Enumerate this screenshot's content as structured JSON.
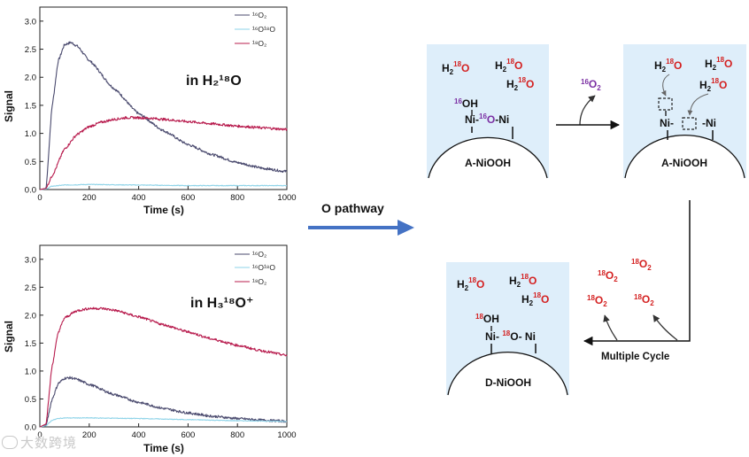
{
  "chart_data": [
    {
      "type": "line",
      "title": "",
      "annotation": "in H₂¹⁸O",
      "xlabel": "Time (s)",
      "ylabel": "Signal",
      "xlim": [
        0,
        1000
      ],
      "ylim": [
        0,
        3.25
      ],
      "xticks": [
        "0",
        "200",
        "400",
        "600",
        "800",
        "1000"
      ],
      "yticks": [
        "0.0",
        "0.5",
        "1.0",
        "1.5",
        "2.0",
        "2.5",
        "3.0"
      ],
      "legend_position": "top-right",
      "series": [
        {
          "name": "¹⁶O₂",
          "color": "#4a4a6e",
          "x": [
            0,
            25,
            50,
            75,
            100,
            125,
            150,
            200,
            300,
            400,
            500,
            600,
            700,
            800,
            900,
            1000
          ],
          "y": [
            0.0,
            0.02,
            1.5,
            2.3,
            2.58,
            2.62,
            2.56,
            2.3,
            1.8,
            1.35,
            1.05,
            0.8,
            0.62,
            0.48,
            0.38,
            0.32
          ]
        },
        {
          "name": "¹⁶O¹⁸O",
          "color": "#8ed3e8",
          "x": [
            0,
            25,
            50,
            100,
            200,
            400,
            600,
            800,
            1000
          ],
          "y": [
            0.0,
            0.01,
            0.06,
            0.08,
            0.09,
            0.08,
            0.07,
            0.07,
            0.07
          ]
        },
        {
          "name": "¹⁸O₂",
          "color": "#b81c4e",
          "x": [
            0,
            25,
            50,
            100,
            150,
            200,
            250,
            300,
            350,
            400,
            450,
            500,
            600,
            700,
            800,
            900,
            1000
          ],
          "y": [
            0.0,
            0.02,
            0.25,
            0.72,
            0.98,
            1.12,
            1.2,
            1.25,
            1.28,
            1.28,
            1.27,
            1.25,
            1.21,
            1.17,
            1.13,
            1.1,
            1.07
          ]
        }
      ]
    },
    {
      "type": "line",
      "title": "",
      "annotation": "in H₃¹⁸O⁺",
      "xlabel": "Time (s)",
      "ylabel": "Signal",
      "xlim": [
        0,
        1000
      ],
      "ylim": [
        0,
        3.25
      ],
      "xticks": [
        "0",
        "200",
        "400",
        "600",
        "800",
        "1000"
      ],
      "yticks": [
        "0.0",
        "0.5",
        "1.0",
        "1.5",
        "2.0",
        "2.5",
        "3.0"
      ],
      "legend_position": "top-right",
      "series": [
        {
          "name": "¹⁶O₂",
          "color": "#4a4a6e",
          "x": [
            0,
            25,
            50,
            75,
            100,
            125,
            150,
            200,
            300,
            400,
            500,
            600,
            700,
            800,
            900,
            1000
          ],
          "y": [
            0.0,
            0.03,
            0.5,
            0.78,
            0.87,
            0.88,
            0.85,
            0.76,
            0.58,
            0.44,
            0.33,
            0.25,
            0.19,
            0.15,
            0.12,
            0.1
          ]
        },
        {
          "name": "¹⁶O¹⁸O",
          "color": "#8ed3e8",
          "x": [
            0,
            25,
            50,
            75,
            100,
            200,
            400,
            600,
            800,
            1000
          ],
          "y": [
            0.0,
            0.02,
            0.12,
            0.15,
            0.16,
            0.16,
            0.15,
            0.13,
            0.11,
            0.1
          ]
        },
        {
          "name": "¹⁸O₂",
          "color": "#b81c4e",
          "x": [
            0,
            25,
            50,
            75,
            100,
            150,
            200,
            250,
            300,
            400,
            500,
            600,
            700,
            800,
            900,
            1000
          ],
          "y": [
            0.0,
            0.05,
            1.1,
            1.7,
            1.95,
            2.08,
            2.12,
            2.12,
            2.09,
            1.97,
            1.83,
            1.7,
            1.57,
            1.46,
            1.36,
            1.28
          ]
        }
      ]
    }
  ],
  "labels": {
    "pathway": "O pathway",
    "multiple_cycle": "Multiple Cycle",
    "box1_name": "A-NiOOH",
    "box2_name": "A-NiOOH",
    "box3_name": "D-NiOOH",
    "ni": "Ni",
    "watermark": "大数跨境"
  },
  "colors": {
    "o18": "#d42020",
    "o16": "#7b2fa3",
    "box_fill": "#deeefa",
    "arrow_blue": "#4472c4"
  }
}
